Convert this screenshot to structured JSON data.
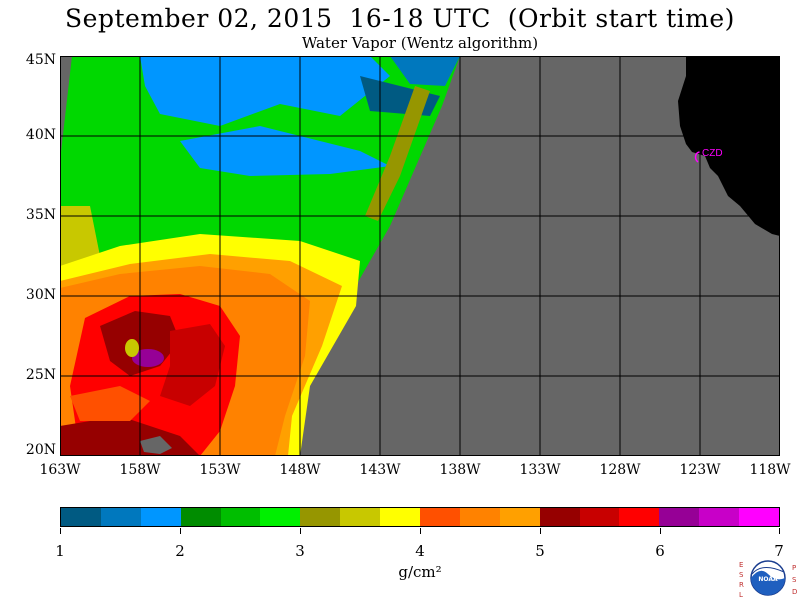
{
  "title": "September 02, 2015  16-18 UTC  (Orbit start time)",
  "subtitle": "Water Vapor (Wentz algorithm)",
  "lat_labels": [
    "45N",
    "40N",
    "35N",
    "30N",
    "25N",
    "20N"
  ],
  "lon_labels": [
    "163W",
    "158W",
    "153W",
    "148W",
    "143W",
    "138W",
    "133W",
    "128W",
    "123W",
    "118W"
  ],
  "map": {
    "lat_range": [
      20,
      45
    ],
    "lon_range": [
      -163,
      -118
    ],
    "gridline_spacing_deg": 5,
    "no_data_color": "#666666",
    "land_color": "#000000",
    "station_label": "CZD",
    "station_color": "#ff00ff"
  },
  "colorbar": {
    "tick_labels": [
      "1",
      "2",
      "3",
      "4",
      "5",
      "6",
      "7"
    ],
    "units": "g/cm²",
    "colors": [
      "#005a82",
      "#0078be",
      "#0096ff",
      "#008c00",
      "#00be00",
      "#00f000",
      "#969600",
      "#c8c800",
      "#ffff00",
      "#ff5000",
      "#ff8200",
      "#ffa000",
      "#960000",
      "#c80000",
      "#ff0000",
      "#960096",
      "#c800c8",
      "#ff00ff"
    ]
  },
  "logo": {
    "left_letters": "ESRL",
    "right_letters": "PSD",
    "center_text": "NOAA"
  }
}
